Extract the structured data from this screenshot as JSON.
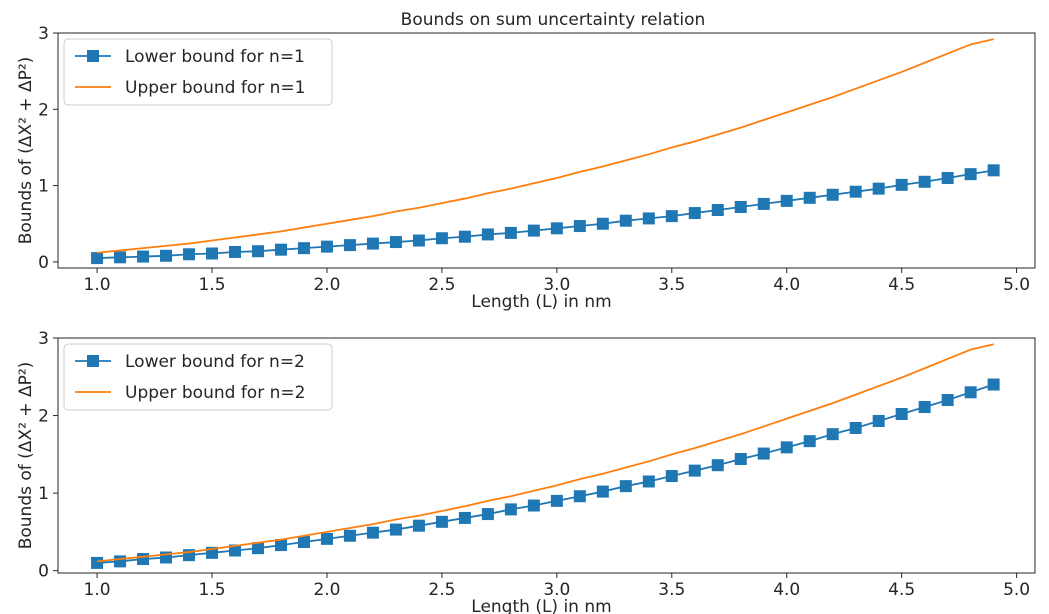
{
  "chart_data": [
    {
      "type": "line",
      "title": "Bounds on sum uncertainty relation",
      "xlabel": "Length (L) in nm",
      "ylabel": "Bounds of (ΔX² + ΔP²)",
      "xlim": [
        0.83,
        5.08
      ],
      "ylim": [
        -0.08,
        3.0
      ],
      "xticks": [
        "1.0",
        "1.5",
        "2.0",
        "2.5",
        "3.0",
        "3.5",
        "4.0",
        "4.5",
        "5.0"
      ],
      "yticks": [
        "0",
        "1",
        "2",
        "3"
      ],
      "grid": false,
      "legend_position": "top-left",
      "x": [
        1.0,
        1.1,
        1.2,
        1.3,
        1.4,
        1.5,
        1.6,
        1.7,
        1.8,
        1.9,
        2.0,
        2.1,
        2.2,
        2.3,
        2.4,
        2.5,
        2.6,
        2.7,
        2.8,
        2.9,
        3.0,
        3.1,
        3.2,
        3.3,
        3.4,
        3.5,
        3.6,
        3.7,
        3.8,
        3.9,
        4.0,
        4.1,
        4.2,
        4.3,
        4.4,
        4.5,
        4.6,
        4.7,
        4.8,
        4.9
      ],
      "series": [
        {
          "name": "Lower bound for n=1",
          "color": "#1f77b4",
          "marker": "square",
          "values": [
            0.05,
            0.06,
            0.07,
            0.08,
            0.1,
            0.11,
            0.13,
            0.14,
            0.16,
            0.18,
            0.2,
            0.22,
            0.24,
            0.26,
            0.28,
            0.31,
            0.33,
            0.36,
            0.38,
            0.41,
            0.44,
            0.47,
            0.5,
            0.54,
            0.57,
            0.6,
            0.64,
            0.68,
            0.72,
            0.76,
            0.8,
            0.84,
            0.88,
            0.92,
            0.96,
            1.01,
            1.05,
            1.1,
            1.15,
            1.2
          ]
        },
        {
          "name": "Upper bound for n=1",
          "color": "#ff7f0e",
          "marker": "none",
          "values": [
            0.12,
            0.15,
            0.18,
            0.21,
            0.24,
            0.28,
            0.32,
            0.36,
            0.4,
            0.45,
            0.5,
            0.55,
            0.6,
            0.66,
            0.71,
            0.77,
            0.83,
            0.9,
            0.96,
            1.03,
            1.1,
            1.18,
            1.25,
            1.33,
            1.41,
            1.5,
            1.58,
            1.67,
            1.76,
            1.86,
            1.96,
            2.06,
            2.16,
            2.27,
            2.38,
            2.49,
            2.61,
            2.73,
            2.85,
            2.92
          ]
        }
      ]
    },
    {
      "type": "line",
      "title": "",
      "xlabel": "Length (L) in nm",
      "ylabel": "Bounds of (ΔX² + ΔP²)",
      "xlim": [
        0.83,
        5.08
      ],
      "ylim": [
        -0.03,
        3.0
      ],
      "xticks": [
        "1.0",
        "1.5",
        "2.0",
        "2.5",
        "3.0",
        "3.5",
        "4.0",
        "4.5",
        "5.0"
      ],
      "yticks": [
        "0",
        "1",
        "2",
        "3"
      ],
      "grid": false,
      "legend_position": "top-left",
      "x": [
        1.0,
        1.1,
        1.2,
        1.3,
        1.4,
        1.5,
        1.6,
        1.7,
        1.8,
        1.9,
        2.0,
        2.1,
        2.2,
        2.3,
        2.4,
        2.5,
        2.6,
        2.7,
        2.8,
        2.9,
        3.0,
        3.1,
        3.2,
        3.3,
        3.4,
        3.5,
        3.6,
        3.7,
        3.8,
        3.9,
        4.0,
        4.1,
        4.2,
        4.3,
        4.4,
        4.5,
        4.6,
        4.7,
        4.8,
        4.9
      ],
      "series": [
        {
          "name": "Lower bound for n=2",
          "color": "#1f77b4",
          "marker": "square",
          "values": [
            0.1,
            0.12,
            0.15,
            0.17,
            0.2,
            0.23,
            0.26,
            0.29,
            0.33,
            0.37,
            0.41,
            0.45,
            0.49,
            0.53,
            0.58,
            0.63,
            0.68,
            0.73,
            0.79,
            0.84,
            0.9,
            0.96,
            1.02,
            1.09,
            1.15,
            1.22,
            1.29,
            1.36,
            1.44,
            1.51,
            1.59,
            1.67,
            1.76,
            1.84,
            1.93,
            2.02,
            2.11,
            2.2,
            2.3,
            2.4
          ]
        },
        {
          "name": "Upper bound for n=2",
          "color": "#ff7f0e",
          "marker": "none",
          "values": [
            0.12,
            0.15,
            0.18,
            0.21,
            0.24,
            0.28,
            0.32,
            0.36,
            0.4,
            0.45,
            0.5,
            0.55,
            0.6,
            0.66,
            0.71,
            0.77,
            0.83,
            0.9,
            0.96,
            1.03,
            1.1,
            1.18,
            1.25,
            1.33,
            1.41,
            1.5,
            1.58,
            1.67,
            1.76,
            1.86,
            1.96,
            2.06,
            2.16,
            2.27,
            2.38,
            2.49,
            2.61,
            2.73,
            2.85,
            2.92
          ]
        }
      ]
    }
  ]
}
